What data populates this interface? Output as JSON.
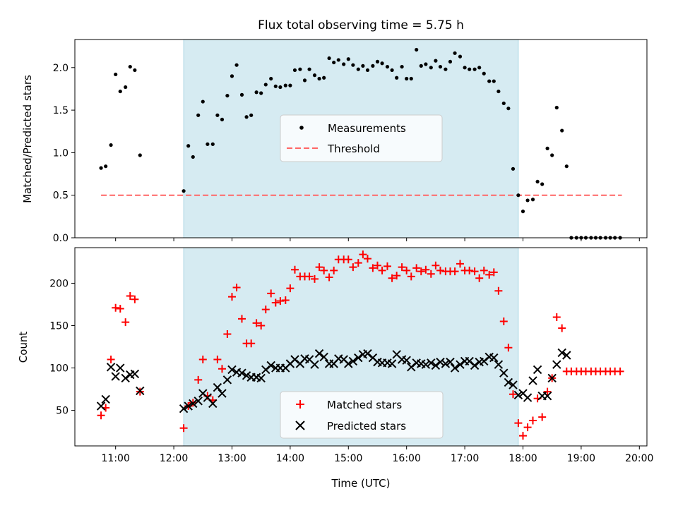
{
  "figure": {
    "title": "Flux total observing time = 5.75 h",
    "xlabel": "Time (UTC)",
    "xticks": [
      {
        "v": 11,
        "label": "11:00"
      },
      {
        "v": 12,
        "label": "12:00"
      },
      {
        "v": 13,
        "label": "13:00"
      },
      {
        "v": 14,
        "label": "14:00"
      },
      {
        "v": 15,
        "label": "15:00"
      },
      {
        "v": 16,
        "label": "16:00"
      },
      {
        "v": 17,
        "label": "17:00"
      },
      {
        "v": 18,
        "label": "18:00"
      },
      {
        "v": 19,
        "label": "19:00"
      },
      {
        "v": 20,
        "label": "20:00"
      }
    ],
    "xlim": [
      10.3,
      20.13
    ],
    "colors": {
      "span": "#add8e6",
      "threshold": "#ff6666",
      "measurements": "#000000",
      "matched": "#ff0000",
      "predicted": "#000000"
    }
  },
  "chart_data": [
    {
      "type": "scatter",
      "ylabel": "Matched/Predicted stars",
      "ylim": [
        0,
        2.33
      ],
      "yticks": [
        {
          "v": 0,
          "label": "0.0"
        },
        {
          "v": 0.5,
          "label": "0.5"
        },
        {
          "v": 1,
          "label": "1.0"
        },
        {
          "v": 1.5,
          "label": "1.5"
        },
        {
          "v": 2,
          "label": "2.0"
        }
      ],
      "shaded_region": {
        "x": [
          12.17,
          17.92
        ]
      },
      "threshold": {
        "name": "Threshold",
        "y": 0.5,
        "x": [
          10.75,
          19.7
        ]
      },
      "legend": {
        "position": "center",
        "entries": [
          "Measurements",
          "Threshold"
        ]
      },
      "series": [
        {
          "name": "Measurements",
          "marker": "dot",
          "x": [
            10.75,
            10.83,
            10.92,
            11.0,
            11.08,
            11.17,
            11.25,
            11.33,
            11.42,
            12.17,
            12.25,
            12.33,
            12.42,
            12.5,
            12.58,
            12.67,
            12.75,
            12.83,
            12.92,
            13.0,
            13.08,
            13.17,
            13.25,
            13.33,
            13.42,
            13.5,
            13.58,
            13.67,
            13.75,
            13.83,
            13.92,
            14.0,
            14.08,
            14.17,
            14.25,
            14.33,
            14.42,
            14.5,
            14.58,
            14.67,
            14.75,
            14.83,
            14.92,
            15.0,
            15.08,
            15.17,
            15.25,
            15.33,
            15.42,
            15.5,
            15.58,
            15.67,
            15.75,
            15.83,
            15.92,
            16.0,
            16.08,
            16.17,
            16.25,
            16.33,
            16.42,
            16.5,
            16.58,
            16.67,
            16.75,
            16.83,
            16.92,
            17.0,
            17.08,
            17.17,
            17.25,
            17.33,
            17.42,
            17.5,
            17.58,
            17.67,
            17.75,
            17.83,
            17.92,
            18.0,
            18.08,
            18.17,
            18.25,
            18.33,
            18.42,
            18.5,
            18.58,
            18.67,
            18.75,
            18.83,
            18.92,
            19.0,
            19.08,
            19.17,
            19.25,
            19.33,
            19.42,
            19.5,
            19.58,
            19.67
          ],
          "y": [
            0.82,
            0.84,
            1.09,
            1.92,
            1.72,
            1.77,
            2.01,
            1.97,
            0.97,
            0.55,
            1.08,
            0.95,
            1.44,
            1.6,
            1.1,
            1.1,
            1.44,
            1.39,
            1.67,
            1.9,
            2.03,
            1.68,
            1.42,
            1.44,
            1.71,
            1.7,
            1.8,
            1.87,
            1.78,
            1.77,
            1.79,
            1.79,
            1.97,
            1.98,
            1.85,
            1.98,
            1.91,
            1.87,
            1.88,
            2.11,
            2.06,
            2.09,
            2.04,
            2.1,
            2.03,
            1.98,
            2.02,
            1.97,
            2.02,
            2.07,
            2.05,
            2.01,
            1.97,
            1.88,
            2.01,
            1.87,
            1.87,
            2.21,
            2.02,
            2.04,
            2.0,
            2.08,
            2.01,
            1.98,
            2.07,
            2.17,
            2.13,
            2.0,
            1.98,
            1.98,
            2.0,
            1.93,
            1.84,
            1.84,
            1.72,
            1.58,
            1.52,
            0.81,
            0.5,
            0.31,
            0.44,
            0.45,
            0.66,
            0.63,
            1.05,
            0.97,
            1.53,
            1.26,
            0.84,
            0.0,
            0.0,
            0.0,
            0.0,
            0.0,
            0.0,
            0.0,
            0.0,
            0.0,
            0.0,
            0.0
          ]
        }
      ]
    },
    {
      "type": "scatter",
      "ylabel": "Count",
      "ylim": [
        8,
        242
      ],
      "yticks": [
        {
          "v": 50,
          "label": "50"
        },
        {
          "v": 100,
          "label": "100"
        },
        {
          "v": 150,
          "label": "150"
        },
        {
          "v": 200,
          "label": "200"
        }
      ],
      "shaded_region": {
        "x": [
          12.17,
          17.92
        ]
      },
      "legend": {
        "position": "center",
        "entries": [
          "Matched stars",
          "Predicted stars"
        ]
      },
      "series": [
        {
          "name": "Matched stars",
          "marker": "plus",
          "x": [
            10.75,
            10.83,
            10.92,
            11.0,
            11.08,
            11.17,
            11.25,
            11.33,
            11.42,
            12.17,
            12.25,
            12.33,
            12.42,
            12.5,
            12.58,
            12.67,
            12.75,
            12.83,
            12.92,
            13.0,
            13.08,
            13.17,
            13.25,
            13.33,
            13.42,
            13.5,
            13.58,
            13.67,
            13.75,
            13.83,
            13.92,
            14.0,
            14.08,
            14.17,
            14.25,
            14.33,
            14.42,
            14.5,
            14.58,
            14.67,
            14.75,
            14.83,
            14.92,
            15.0,
            15.08,
            15.17,
            15.25,
            15.33,
            15.42,
            15.5,
            15.58,
            15.67,
            15.75,
            15.83,
            15.92,
            16.0,
            16.08,
            16.17,
            16.25,
            16.33,
            16.42,
            16.5,
            16.58,
            16.67,
            16.75,
            16.83,
            16.92,
            17.0,
            17.08,
            17.17,
            17.25,
            17.33,
            17.42,
            17.5,
            17.58,
            17.67,
            17.75,
            17.83,
            17.92,
            18.0,
            18.08,
            18.17,
            18.25,
            18.33,
            18.42,
            18.5,
            18.58,
            18.67,
            18.75,
            18.83,
            18.92,
            19.0,
            19.08,
            19.17,
            19.25,
            19.33,
            19.42,
            19.5,
            19.58,
            19.67
          ],
          "y": [
            44,
            53,
            110,
            171,
            170,
            154,
            185,
            181,
            72,
            29,
            55,
            59,
            86,
            110,
            67,
            62,
            110,
            99,
            140,
            184,
            195,
            158,
            129,
            129,
            153,
            150,
            169,
            188,
            177,
            179,
            180,
            194,
            216,
            208,
            208,
            208,
            205,
            219,
            215,
            207,
            215,
            228,
            228,
            228,
            219,
            224,
            234,
            229,
            218,
            221,
            215,
            220,
            206,
            209,
            219,
            215,
            208,
            218,
            214,
            216,
            211,
            221,
            215,
            214,
            214,
            214,
            223,
            215,
            215,
            214,
            206,
            215,
            210,
            213,
            191,
            155,
            124,
            69,
            35,
            20,
            30,
            38,
            64,
            42,
            72,
            88,
            160,
            147,
            96,
            96,
            96,
            96,
            96,
            96,
            96,
            96,
            96,
            96,
            96,
            96
          ]
        },
        {
          "name": "Predicted stars",
          "marker": "x",
          "x": [
            10.75,
            10.83,
            10.92,
            11.0,
            11.08,
            11.17,
            11.25,
            11.33,
            11.42,
            12.17,
            12.25,
            12.33,
            12.42,
            12.5,
            12.58,
            12.67,
            12.75,
            12.83,
            12.92,
            13.0,
            13.08,
            13.17,
            13.25,
            13.33,
            13.42,
            13.5,
            13.58,
            13.67,
            13.75,
            13.83,
            13.92,
            14.0,
            14.08,
            14.17,
            14.25,
            14.33,
            14.42,
            14.5,
            14.58,
            14.67,
            14.75,
            14.83,
            14.92,
            15.0,
            15.08,
            15.17,
            15.25,
            15.33,
            15.42,
            15.5,
            15.58,
            15.67,
            15.75,
            15.83,
            15.92,
            16.0,
            16.08,
            16.17,
            16.25,
            16.33,
            16.42,
            16.5,
            16.58,
            16.67,
            16.75,
            16.83,
            16.92,
            17.0,
            17.08,
            17.17,
            17.25,
            17.33,
            17.42,
            17.5,
            17.58,
            17.67,
            17.75,
            17.83,
            17.92,
            18.0,
            18.08,
            18.17,
            18.25,
            18.33,
            18.42,
            18.5,
            18.58,
            18.67,
            18.75
          ],
          "y": [
            55,
            63,
            101,
            90,
            100,
            88,
            92,
            93,
            73,
            52,
            55,
            58,
            61,
            70,
            65,
            58,
            77,
            70,
            86,
            98,
            95,
            94,
            91,
            89,
            89,
            88,
            98,
            103,
            100,
            100,
            100,
            105,
            110,
            105,
            111,
            110,
            104,
            117,
            113,
            105,
            105,
            111,
            110,
            105,
            108,
            112,
            116,
            117,
            112,
            107,
            106,
            106,
            105,
            116,
            110,
            109,
            101,
            106,
            105,
            104,
            106,
            103,
            107,
            105,
            107,
            100,
            104,
            108,
            108,
            103,
            107,
            108,
            113,
            112,
            104,
            94,
            83,
            80,
            68,
            70,
            65,
            85,
            98,
            67,
            67,
            88,
            104,
            118,
            115
          ]
        }
      ]
    }
  ]
}
